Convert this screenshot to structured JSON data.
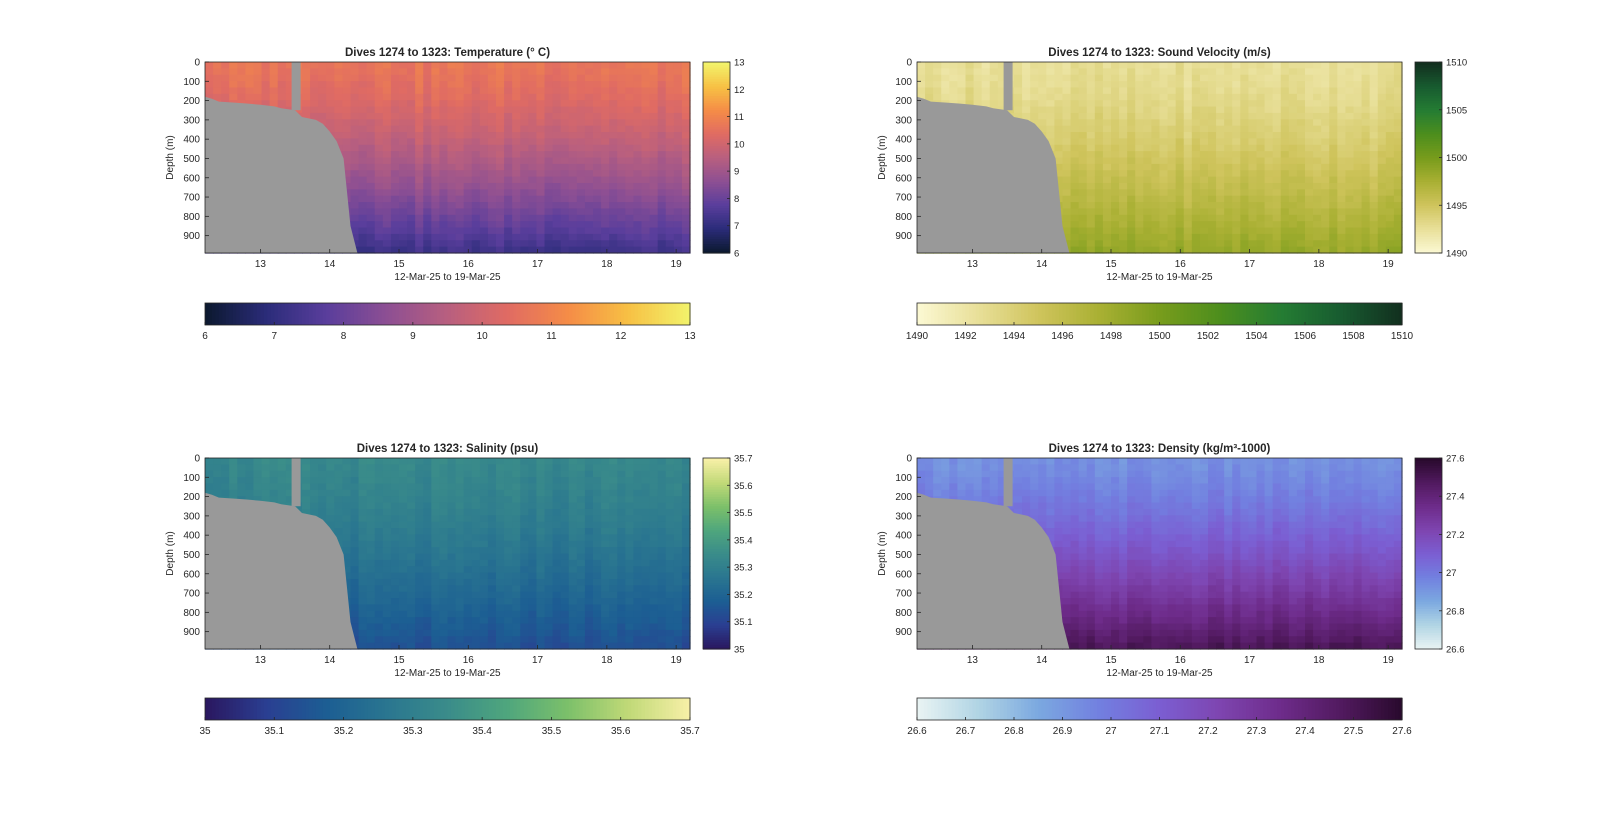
{
  "figure": {
    "background": "#ffffff",
    "land_color": "#999999"
  },
  "chart_data": [
    {
      "type": "heatmap",
      "title": "Dives 1274 to 1323: Temperature (° C)",
      "xlabel": "12-Mar-25 to 19-Mar-25",
      "ylabel": "Depth (m)",
      "xlim": [
        12.2,
        19.2
      ],
      "ylim": [
        0,
        990
      ],
      "x_ticks": [
        "13",
        "14",
        "15",
        "16",
        "17",
        "18",
        "19"
      ],
      "y_ticks": [
        "0",
        "100",
        "200",
        "300",
        "400",
        "500",
        "600",
        "700",
        "800",
        "900"
      ],
      "colorbar_range": [
        6,
        13
      ],
      "colorbar_ticks": [
        "6",
        "7",
        "8",
        "9",
        "10",
        "11",
        "12",
        "13"
      ],
      "horizontal_colorbar_ticks": [
        "6",
        "7",
        "8",
        "9",
        "10",
        "11",
        "12",
        "13"
      ],
      "colormap": [
        "#0c1930",
        "#2b2c7a",
        "#5a3e9c",
        "#8d4f93",
        "#b85f7f",
        "#e06b63",
        "#f58c47",
        "#f7c044",
        "#f2f26a"
      ],
      "surface_value": 10.7,
      "deep_value": 7.2
    },
    {
      "type": "heatmap",
      "title": "Dives 1274 to 1323: Sound Velocity (m/s)",
      "xlabel": "12-Mar-25 to 19-Mar-25",
      "ylabel": "Depth (m)",
      "xlim": [
        12.2,
        19.2
      ],
      "ylim": [
        0,
        990
      ],
      "x_ticks": [
        "13",
        "14",
        "15",
        "16",
        "17",
        "18",
        "19"
      ],
      "y_ticks": [
        "0",
        "100",
        "200",
        "300",
        "400",
        "500",
        "600",
        "700",
        "800",
        "900"
      ],
      "colorbar_range": [
        1490,
        1510
      ],
      "colorbar_ticks": [
        "1490",
        "1495",
        "1500",
        "1505",
        "1510"
      ],
      "horizontal_colorbar_ticks": [
        "1490",
        "1492",
        "1494",
        "1496",
        "1498",
        "1500",
        "1502",
        "1504",
        "1506",
        "1508",
        "1510"
      ],
      "colormap": [
        "#fbf8d2",
        "#e8df98",
        "#cfc45c",
        "#a9b033",
        "#789c1c",
        "#4d8e1d",
        "#257d33",
        "#185c30",
        "#12301f"
      ],
      "surface_value": 1492.5,
      "deep_value": 1498.5
    },
    {
      "type": "heatmap",
      "title": "Dives 1274 to 1323: Salinity (psu)",
      "xlabel": "12-Mar-25 to 19-Mar-25",
      "ylabel": "Depth (m)",
      "xlim": [
        12.2,
        19.2
      ],
      "ylim": [
        0,
        990
      ],
      "x_ticks": [
        "13",
        "14",
        "15",
        "16",
        "17",
        "18",
        "19"
      ],
      "y_ticks": [
        "0",
        "100",
        "200",
        "300",
        "400",
        "500",
        "600",
        "700",
        "800",
        "900"
      ],
      "colorbar_range": [
        35,
        35.7
      ],
      "colorbar_ticks": [
        "35",
        "35.1",
        "35.2",
        "35.3",
        "35.4",
        "35.5",
        "35.6",
        "35.7"
      ],
      "horizontal_colorbar_ticks": [
        "35",
        "35.1",
        "35.2",
        "35.3",
        "35.4",
        "35.5",
        "35.6",
        "35.7"
      ],
      "colormap": [
        "#2a1860",
        "#2a3f92",
        "#1c5e93",
        "#2a7690",
        "#3a8c8a",
        "#4fa67d",
        "#7cc06a",
        "#c0d977",
        "#f6efa6"
      ],
      "surface_value": 35.33,
      "deep_value": 35.13
    },
    {
      "type": "heatmap",
      "title": "Dives 1274 to 1323: Density (kg/m³-1000)",
      "xlabel": "12-Mar-25 to 19-Mar-25",
      "ylabel": "Depth (m)",
      "xlim": [
        12.2,
        19.2
      ],
      "ylim": [
        0,
        990
      ],
      "x_ticks": [
        "13",
        "14",
        "15",
        "16",
        "17",
        "18",
        "19"
      ],
      "y_ticks": [
        "0",
        "100",
        "200",
        "300",
        "400",
        "500",
        "600",
        "700",
        "800",
        "900"
      ],
      "colorbar_range": [
        26.6,
        27.6
      ],
      "colorbar_ticks": [
        "26.6",
        "26.8",
        "27",
        "27.2",
        "27.4",
        "27.6"
      ],
      "horizontal_colorbar_ticks": [
        "26.6",
        "26.7",
        "26.8",
        "26.9",
        "27",
        "27.1",
        "27.2",
        "27.3",
        "27.4",
        "27.5",
        "27.6"
      ],
      "colormap": [
        "#e8f3f3",
        "#b0d4e4",
        "#7ba8e0",
        "#7280e0",
        "#7b5ed2",
        "#7e45b0",
        "#6e2c8b",
        "#521a60",
        "#2a0a2e"
      ],
      "surface_value": 26.92,
      "deep_value": 27.5
    }
  ]
}
